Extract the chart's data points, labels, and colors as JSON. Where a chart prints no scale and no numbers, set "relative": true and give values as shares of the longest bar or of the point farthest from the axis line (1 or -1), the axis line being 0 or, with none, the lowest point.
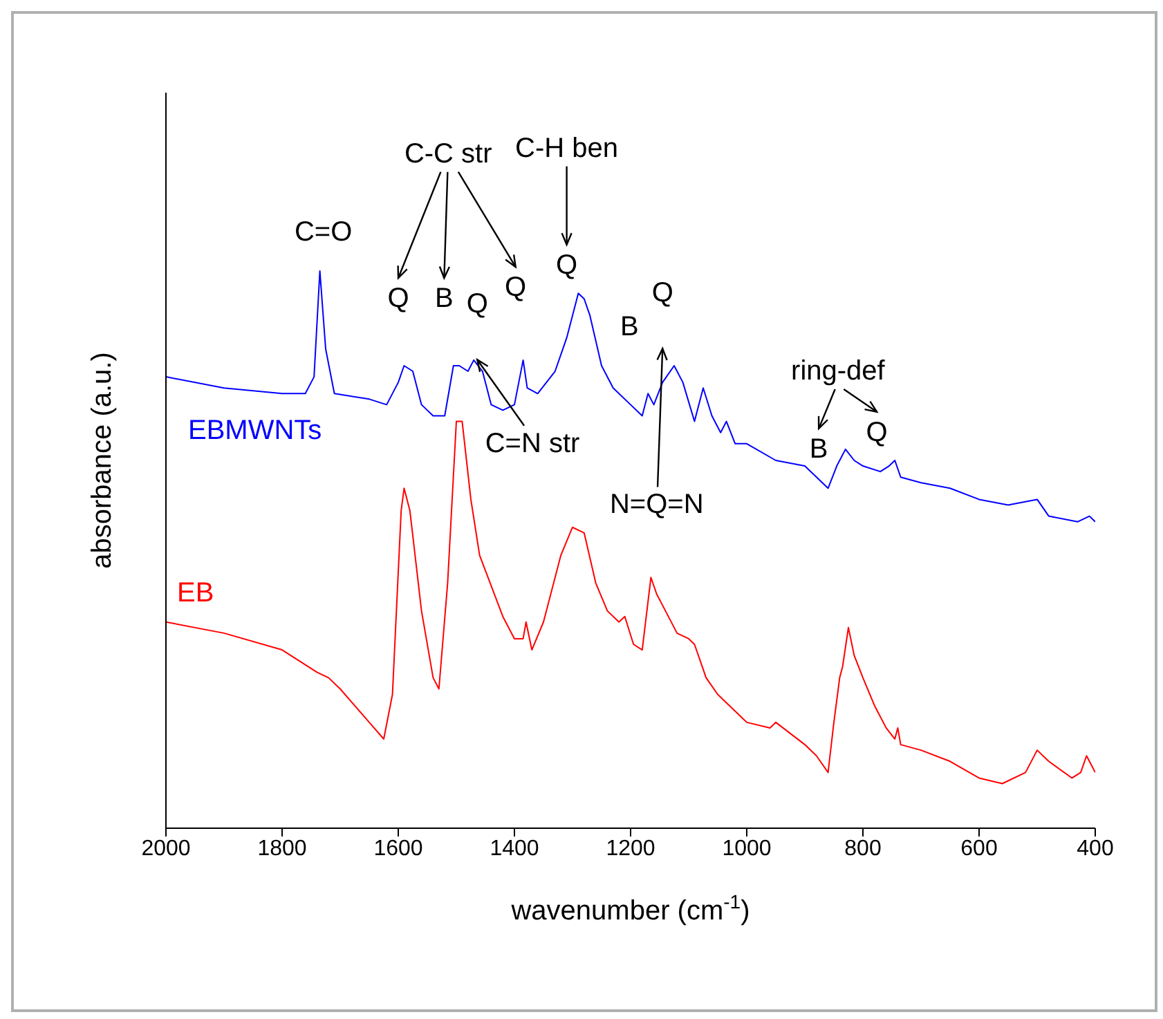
{
  "chart_data": {
    "type": "line",
    "relative": true,
    "xlabel": "wavenumber (cm$^{-1}$)",
    "ylabel": "absorbance (a.u.)",
    "xlim": [
      2000,
      400
    ],
    "xticks": [
      2000,
      1800,
      1600,
      1400,
      1200,
      1000,
      800,
      600,
      400
    ],
    "marker": "none",
    "series": [
      {
        "name": "EBMWNTs",
        "color": "#0000ff",
        "x": [
          2000,
          1900,
          1800,
          1760,
          1745,
          1735,
          1725,
          1710,
          1650,
          1620,
          1600,
          1590,
          1575,
          1560,
          1540,
          1520,
          1505,
          1495,
          1480,
          1470,
          1455,
          1440,
          1420,
          1400,
          1385,
          1378,
          1360,
          1330,
          1310,
          1290,
          1280,
          1270,
          1250,
          1230,
          1200,
          1180,
          1170,
          1160,
          1145,
          1125,
          1110,
          1090,
          1075,
          1060,
          1045,
          1035,
          1020,
          1000,
          950,
          900,
          860,
          845,
          830,
          815,
          800,
          770,
          755,
          745,
          735,
          700,
          650,
          600,
          550,
          500,
          480,
          430,
          410,
          400
        ],
        "values": [
          0.81,
          0.79,
          0.78,
          0.78,
          0.81,
          1.0,
          0.86,
          0.78,
          0.77,
          0.76,
          0.8,
          0.83,
          0.82,
          0.76,
          0.74,
          0.74,
          0.83,
          0.83,
          0.82,
          0.84,
          0.82,
          0.76,
          0.75,
          0.76,
          0.84,
          0.79,
          0.78,
          0.82,
          0.88,
          0.96,
          0.95,
          0.92,
          0.83,
          0.79,
          0.76,
          0.74,
          0.78,
          0.76,
          0.8,
          0.83,
          0.8,
          0.73,
          0.79,
          0.74,
          0.71,
          0.73,
          0.69,
          0.69,
          0.66,
          0.65,
          0.61,
          0.65,
          0.68,
          0.66,
          0.65,
          0.64,
          0.65,
          0.66,
          0.63,
          0.62,
          0.61,
          0.59,
          0.58,
          0.59,
          0.56,
          0.55,
          0.56,
          0.55
        ]
      },
      {
        "name": "EB",
        "color": "#ff0000",
        "x": [
          2000,
          1900,
          1800,
          1740,
          1720,
          1700,
          1650,
          1625,
          1610,
          1595,
          1590,
          1580,
          1560,
          1540,
          1530,
          1515,
          1500,
          1490,
          1475,
          1460,
          1420,
          1400,
          1385,
          1380,
          1370,
          1350,
          1320,
          1300,
          1280,
          1260,
          1240,
          1220,
          1210,
          1195,
          1180,
          1165,
          1155,
          1140,
          1120,
          1100,
          1090,
          1070,
          1050,
          1010,
          1000,
          960,
          950,
          900,
          880,
          860,
          850,
          840,
          835,
          825,
          815,
          800,
          780,
          760,
          745,
          740,
          735,
          700,
          650,
          600,
          560,
          520,
          500,
          480,
          440,
          425,
          415,
          410,
          400
        ],
        "values": [
          0.37,
          0.35,
          0.32,
          0.28,
          0.27,
          0.25,
          0.19,
          0.16,
          0.24,
          0.57,
          0.61,
          0.57,
          0.39,
          0.27,
          0.25,
          0.44,
          0.73,
          0.73,
          0.59,
          0.49,
          0.38,
          0.34,
          0.34,
          0.37,
          0.32,
          0.37,
          0.49,
          0.54,
          0.53,
          0.44,
          0.39,
          0.37,
          0.38,
          0.33,
          0.32,
          0.45,
          0.42,
          0.39,
          0.35,
          0.34,
          0.33,
          0.27,
          0.24,
          0.2,
          0.19,
          0.18,
          0.19,
          0.15,
          0.13,
          0.1,
          0.19,
          0.27,
          0.29,
          0.36,
          0.31,
          0.27,
          0.22,
          0.18,
          0.16,
          0.18,
          0.15,
          0.14,
          0.12,
          0.09,
          0.08,
          0.1,
          0.14,
          0.12,
          0.09,
          0.1,
          0.13,
          0.12,
          0.1
        ]
      }
    ],
    "annotations": [
      "C=O",
      "C-C str",
      "Q",
      "B",
      "Q",
      "Q",
      "C-H ben",
      "Q",
      "B",
      "Q",
      "C=N str",
      "N=Q=N",
      "ring-def",
      "B",
      "Q"
    ]
  }
}
